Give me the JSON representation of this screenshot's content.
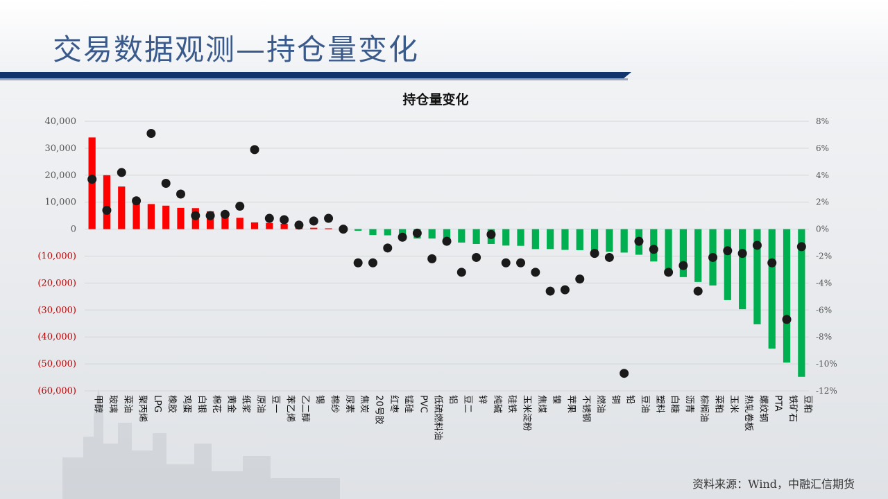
{
  "page": {
    "title": "交易数据观测—持仓量变化",
    "source_note": "资料来源：Wind，中融汇信期货"
  },
  "colors": {
    "positive": "#ff0000",
    "negative": "#00b050",
    "point": "#1a1a1a",
    "title_blue": "#3a5a8c",
    "bar_navy": "#12356e",
    "negative_tick": "#c00000"
  },
  "chart_data": {
    "type": "bar",
    "title": "持仓量变化",
    "categories": [
      "甲醇",
      "玻璃",
      "菜油",
      "聚丙烯",
      "LPG",
      "橡胶",
      "鸡蛋",
      "白银",
      "棉花",
      "黄金",
      "纸浆",
      "原油",
      "豆一",
      "苯乙烯",
      "乙二醇",
      "锡",
      "棉纱",
      "尿素",
      "焦炭",
      "20号胶",
      "红枣",
      "锰硅",
      "PVC",
      "低硫燃料油",
      "铝",
      "豆二",
      "锌",
      "纯碱",
      "硅铁",
      "玉米淀粉",
      "焦煤",
      "镍",
      "苹果",
      "不锈钢",
      "燃油",
      "铜",
      "铅",
      "豆油",
      "塑料",
      "白糖",
      "沥青",
      "棕榈油",
      "菜粕",
      "玉米",
      "热轧卷板",
      "螺纹钢",
      "PTA",
      "铁矿石",
      "豆粕"
    ],
    "series": [
      {
        "axis": "left",
        "kind": "bar",
        "values": [
          34000,
          20000,
          15800,
          11000,
          9300,
          8700,
          7900,
          7800,
          6600,
          4500,
          4200,
          2500,
          2300,
          2000,
          1000,
          500,
          300,
          0,
          -600,
          -2200,
          -2300,
          -3300,
          -3500,
          -3500,
          -4500,
          -5000,
          -5500,
          -5500,
          -6100,
          -6200,
          -7400,
          -7400,
          -7700,
          -7800,
          -8200,
          -8400,
          -8700,
          -9500,
          -12000,
          -16500,
          -17800,
          -19600,
          -20900,
          -26300,
          -29700,
          -35300,
          -44300,
          -49500,
          -54800
        ]
      },
      {
        "axis": "right",
        "kind": "scatter",
        "values": [
          3.7,
          1.4,
          4.2,
          2.1,
          7.1,
          3.4,
          2.6,
          1.0,
          1.0,
          1.1,
          1.7,
          5.9,
          0.8,
          0.7,
          0.3,
          0.6,
          0.8,
          0.0,
          -2.5,
          -2.5,
          -1.4,
          -0.6,
          -0.3,
          -2.2,
          -0.9,
          -3.2,
          -2.1,
          -0.4,
          -2.5,
          -2.5,
          -3.2,
          -4.6,
          -4.5,
          -3.7,
          -1.8,
          -2.1,
          -10.7,
          -0.9,
          -1.5,
          -3.2,
          -2.7,
          -4.6,
          -2.1,
          -1.6,
          -1.8,
          -1.2,
          -2.5,
          -6.7,
          -1.3
        ]
      }
    ],
    "y_left": {
      "ylim": [
        -60000,
        40000
      ],
      "ticks": [
        40000,
        30000,
        20000,
        10000,
        0,
        -10000,
        -20000,
        -30000,
        -40000,
        -50000,
        -60000
      ],
      "tick_labels": [
        "40,000",
        "30,000",
        "20,000",
        "10,000",
        "0",
        "(10,000)",
        "(20,000)",
        "(30,000)",
        "(40,000)",
        "(50,000)",
        "(60,000)"
      ]
    },
    "y_right": {
      "ylim": [
        -12,
        8
      ],
      "ticks": [
        8,
        6,
        4,
        2,
        0,
        -2,
        -4,
        -6,
        -8,
        -10,
        -12
      ],
      "tick_labels": [
        "8%",
        "6%",
        "4%",
        "2%",
        "0%",
        "-2%",
        "-4%",
        "-6%",
        "-8%",
        "-10%",
        "-12%"
      ]
    },
    "grid": true,
    "legend": "none"
  }
}
